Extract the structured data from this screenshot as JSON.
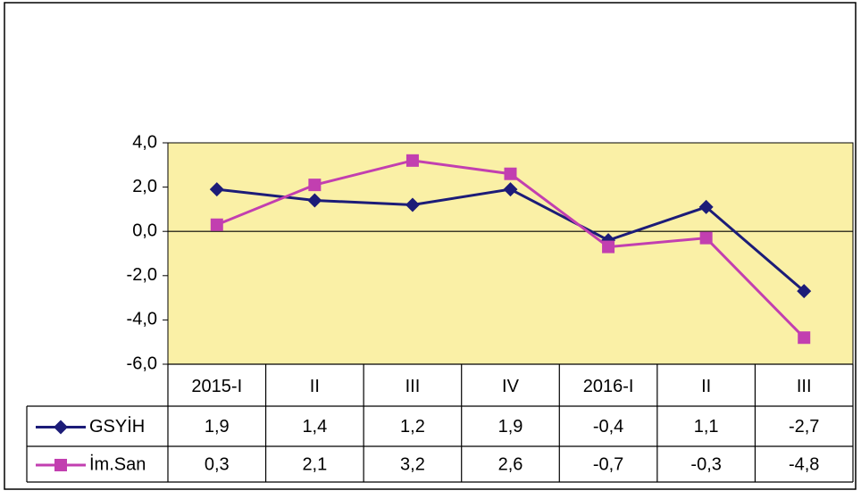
{
  "chart_data": {
    "type": "line",
    "categories": [
      "2015-I",
      "II",
      "III",
      "IV",
      "2016-I",
      "II",
      "III"
    ],
    "series": [
      {
        "name": "GSYİH",
        "color": "#1c1c78",
        "marker": "diamond",
        "values": [
          1.9,
          1.4,
          1.2,
          1.9,
          -0.4,
          1.1,
          -2.7
        ],
        "value_labels": [
          "1,9",
          "1,4",
          "1,2",
          "1,9",
          "-0,4",
          "1,1",
          "-2,7"
        ]
      },
      {
        "name": "İm.San",
        "color": "#c23fb0",
        "marker": "square",
        "values": [
          0.3,
          2.1,
          3.2,
          2.6,
          -0.7,
          -0.3,
          -4.8
        ],
        "value_labels": [
          "0,3",
          "2,1",
          "3,2",
          "2,6",
          "-0,7",
          "-0,3",
          "-4,8"
        ]
      }
    ],
    "ylim": [
      -6,
      4
    ],
    "yticks": [
      {
        "value": -6,
        "label": "-6,0"
      },
      {
        "value": -4,
        "label": "-4,0"
      },
      {
        "value": -2,
        "label": "-2,0"
      },
      {
        "value": 0,
        "label": "0,0"
      },
      {
        "value": 2,
        "label": "2,0"
      },
      {
        "value": 4,
        "label": "4,0"
      }
    ],
    "plot_background": "#faf0a6"
  }
}
